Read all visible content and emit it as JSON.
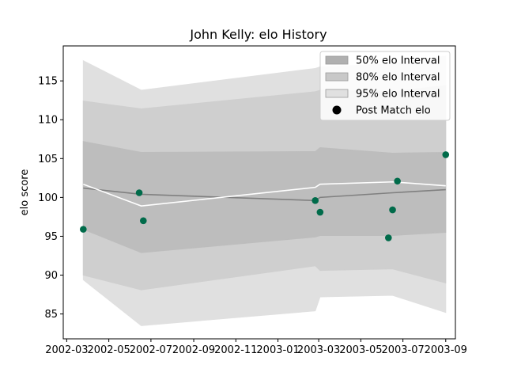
{
  "chart_data": {
    "type": "line",
    "title": "John Kelly: elo History",
    "xlabel": "",
    "ylabel": "elo score",
    "xlim": [
      "2002-02-24",
      "2003-09-15"
    ],
    "ylim": [
      81.8,
      119.5
    ],
    "x_ticks": [
      {
        "date": "2002-03-01",
        "label": "2002-03"
      },
      {
        "date": "2002-05-01",
        "label": "2002-05"
      },
      {
        "date": "2002-07-01",
        "label": "2002-07"
      },
      {
        "date": "2002-09-01",
        "label": "2002-09"
      },
      {
        "date": "2002-11-01",
        "label": "2002-11"
      },
      {
        "date": "2003-01-01",
        "label": "2003-01"
      },
      {
        "date": "2003-03-01",
        "label": "2003-03"
      },
      {
        "date": "2003-05-01",
        "label": "2003-05"
      },
      {
        "date": "2003-07-01",
        "label": "2003-07"
      },
      {
        "date": "2003-09-01",
        "label": "2003-09"
      }
    ],
    "y_ticks": [
      85,
      90,
      95,
      100,
      105,
      110,
      115
    ],
    "grid": false,
    "legend_position": "top-right",
    "legend": [
      {
        "label": "50% elo Interval",
        "kind": "band",
        "color": "#b0b0b0"
      },
      {
        "label": "80% elo Interval",
        "kind": "band",
        "color": "#c8c8c8"
      },
      {
        "label": "95% elo Interval",
        "kind": "band",
        "color": "#e0e0e0"
      },
      {
        "label": "Post Match elo",
        "kind": "marker",
        "color": "#000000"
      }
    ],
    "band_dates": [
      "2002-03-25",
      "2002-06-17",
      "2003-02-24",
      "2003-03-03",
      "2003-06-16",
      "2003-09-01"
    ],
    "bands": [
      {
        "name": "95% elo Interval",
        "color": "#e0e0e0",
        "upper": [
          117.6,
          113.8,
          116.6,
          116.8,
          117.2,
          118.2
        ],
        "lower": [
          89.4,
          83.5,
          85.4,
          87.2,
          87.4,
          85.2
        ]
      },
      {
        "name": "80% elo Interval",
        "color": "#cfcfcf",
        "upper": [
          112.4,
          111.4,
          113.6,
          113.8,
          113.6,
          114.4
        ],
        "lower": [
          90.0,
          88.1,
          91.2,
          90.6,
          90.8,
          89.0
        ]
      },
      {
        "name": "50% elo Interval",
        "color": "#bdbdbd",
        "upper": [
          107.2,
          105.8,
          105.9,
          106.4,
          105.7,
          105.8
        ],
        "lower": [
          95.9,
          92.9,
          94.9,
          95.1,
          95.1,
          95.5
        ]
      }
    ],
    "mean_line": {
      "color": "#808080",
      "x": [
        "2002-03-25",
        "2002-06-17",
        "2003-02-24",
        "2003-03-03",
        "2003-06-16",
        "2003-09-01"
      ],
      "y": [
        101.2,
        100.4,
        99.6,
        100.0,
        100.6,
        101.0
      ]
    },
    "expected_line": {
      "color": "#ffffff",
      "x": [
        "2002-03-25",
        "2002-06-17",
        "2003-02-24",
        "2003-03-03",
        "2003-06-16",
        "2003-09-01"
      ],
      "y": [
        101.7,
        98.9,
        101.3,
        101.7,
        102.0,
        101.5
      ]
    },
    "points": {
      "name": "Post Match elo",
      "color": "#006b4a",
      "x": [
        "2002-03-25",
        "2002-06-14",
        "2002-06-20",
        "2003-02-24",
        "2003-03-03",
        "2003-06-10",
        "2003-06-16",
        "2003-06-23",
        "2003-09-01"
      ],
      "y": [
        95.9,
        100.6,
        97.0,
        99.6,
        98.1,
        94.8,
        98.4,
        102.1,
        105.5
      ]
    }
  }
}
